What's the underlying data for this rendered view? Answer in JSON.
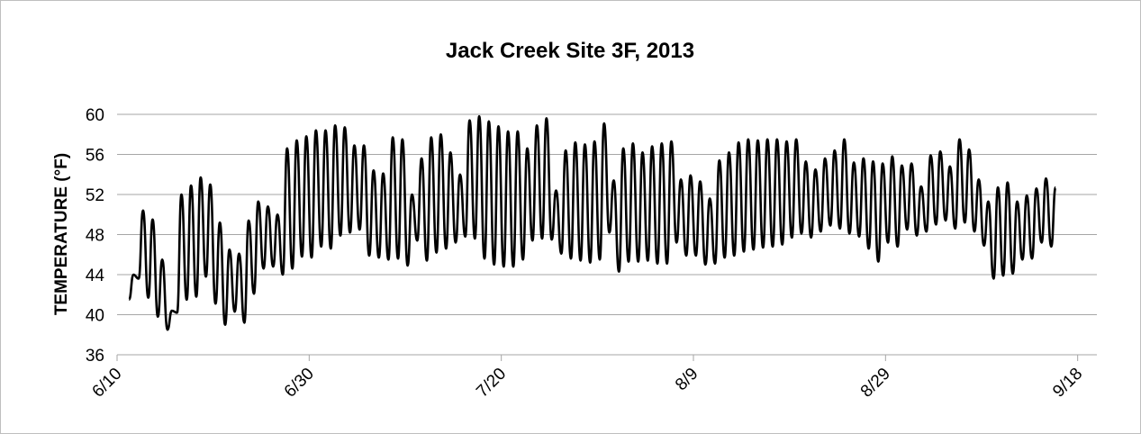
{
  "chart_data": {
    "type": "line",
    "title": "Jack Creek Site 3F, 2013",
    "xlabel": "",
    "ylabel": "TEMPERATURE (°F)",
    "ylim": [
      36,
      60
    ],
    "yticks": [
      36,
      40,
      44,
      48,
      52,
      56,
      60
    ],
    "xticks": [
      "6/10",
      "6/30",
      "7/20",
      "8/9",
      "8/29",
      "9/18"
    ],
    "xlim": [
      "2013-06-10",
      "2013-09-20"
    ],
    "grid": "horizontal",
    "legend": "none",
    "line_color": "#000000",
    "series": [
      {
        "x": [
          "2013-06-11",
          "2013-06-12",
          "2013-06-13",
          "2013-06-14",
          "2013-06-15",
          "2013-06-16",
          "2013-06-17",
          "2013-06-18",
          "2013-06-19",
          "2013-06-20",
          "2013-06-21",
          "2013-06-22",
          "2013-06-23",
          "2013-06-24",
          "2013-06-25",
          "2013-06-26",
          "2013-06-27",
          "2013-06-28",
          "2013-06-29",
          "2013-06-30",
          "2013-07-01",
          "2013-07-02",
          "2013-07-03",
          "2013-07-04",
          "2013-07-05",
          "2013-07-06",
          "2013-07-07",
          "2013-07-08",
          "2013-07-09",
          "2013-07-10",
          "2013-07-11",
          "2013-07-12",
          "2013-07-13",
          "2013-07-14",
          "2013-07-15",
          "2013-07-16",
          "2013-07-17",
          "2013-07-18",
          "2013-07-19",
          "2013-07-20",
          "2013-07-21",
          "2013-07-22",
          "2013-07-23",
          "2013-07-24",
          "2013-07-25",
          "2013-07-26",
          "2013-07-27",
          "2013-07-28",
          "2013-07-29",
          "2013-07-30",
          "2013-07-31",
          "2013-08-01",
          "2013-08-02",
          "2013-08-03",
          "2013-08-04",
          "2013-08-05",
          "2013-08-06",
          "2013-08-07",
          "2013-08-08",
          "2013-08-09",
          "2013-08-10",
          "2013-08-11",
          "2013-08-12",
          "2013-08-13",
          "2013-08-14",
          "2013-08-15",
          "2013-08-16",
          "2013-08-17",
          "2013-08-18",
          "2013-08-19",
          "2013-08-20",
          "2013-08-21",
          "2013-08-22",
          "2013-08-23",
          "2013-08-24",
          "2013-08-25",
          "2013-08-26",
          "2013-08-27",
          "2013-08-28",
          "2013-08-29",
          "2013-08-30",
          "2013-08-31",
          "2013-09-01",
          "2013-09-02",
          "2013-09-03",
          "2013-09-04",
          "2013-09-05",
          "2013-09-06",
          "2013-09-07",
          "2013-09-08",
          "2013-09-09",
          "2013-09-10",
          "2013-09-11",
          "2013-09-12",
          "2013-09-13",
          "2013-09-14",
          "2013-09-15",
          "2013-09-16",
          "2013-09-17"
        ],
        "max": [
          44.0,
          50.4,
          49.5,
          45.5,
          40.4,
          52.0,
          52.9,
          53.7,
          53.0,
          49.2,
          46.5,
          46.1,
          49.4,
          51.3,
          50.8,
          50.0,
          56.6,
          57.4,
          57.8,
          58.4,
          58.4,
          58.9,
          58.7,
          56.9,
          56.9,
          54.4,
          54.1,
          57.7,
          57.5,
          52.0,
          55.6,
          57.7,
          58.0,
          56.2,
          54.0,
          59.4,
          59.8,
          59.3,
          58.8,
          58.3,
          58.3,
          56.6,
          58.9,
          59.6,
          52.4,
          56.4,
          57.2,
          57.0,
          57.3,
          59.1,
          53.4,
          56.6,
          57.1,
          56.2,
          56.8,
          57.1,
          57.3,
          53.5,
          53.9,
          53.3,
          51.6,
          55.4,
          56.2,
          57.2,
          57.5,
          57.4,
          57.5,
          57.5,
          57.3,
          57.5,
          55.3,
          54.5,
          55.6,
          56.4,
          57.5,
          55.2,
          55.6,
          55.3,
          55.1,
          55.8,
          54.9,
          55.1,
          52.8,
          55.9,
          56.3,
          54.8,
          57.5,
          56.5,
          53.5,
          51.3,
          52.7,
          53.2,
          51.3,
          51.9,
          52.6,
          53.6,
          52.7
        ],
        "min": [
          41.5,
          43.6,
          41.7,
          39.8,
          38.5,
          40.2,
          41.5,
          41.8,
          43.8,
          41.1,
          39.0,
          40.3,
          39.2,
          42.1,
          44.6,
          44.8,
          44.0,
          44.6,
          45.8,
          45.7,
          46.8,
          46.6,
          47.9,
          48.2,
          48.5,
          45.9,
          45.7,
          45.5,
          45.6,
          44.9,
          47.4,
          45.4,
          46.2,
          46.6,
          47.2,
          47.8,
          47.6,
          45.6,
          45.0,
          44.8,
          44.8,
          45.5,
          47.4,
          47.6,
          47.5,
          46.1,
          45.6,
          45.4,
          45.2,
          45.5,
          48.2,
          44.3,
          45.3,
          45.3,
          45.4,
          45.1,
          45.1,
          47.2,
          45.9,
          45.9,
          45.0,
          45.1,
          45.7,
          45.9,
          46.3,
          46.5,
          46.7,
          46.8,
          47.0,
          47.7,
          48.1,
          47.7,
          48.3,
          48.9,
          48.6,
          48.1,
          47.8,
          46.6,
          45.3,
          47.2,
          46.8,
          48.5,
          47.9,
          48.3,
          49.0,
          49.4,
          48.6,
          49.2,
          48.3,
          46.9,
          43.6,
          43.9,
          44.1,
          45.5,
          45.6,
          47.2,
          46.8
        ]
      }
    ]
  }
}
